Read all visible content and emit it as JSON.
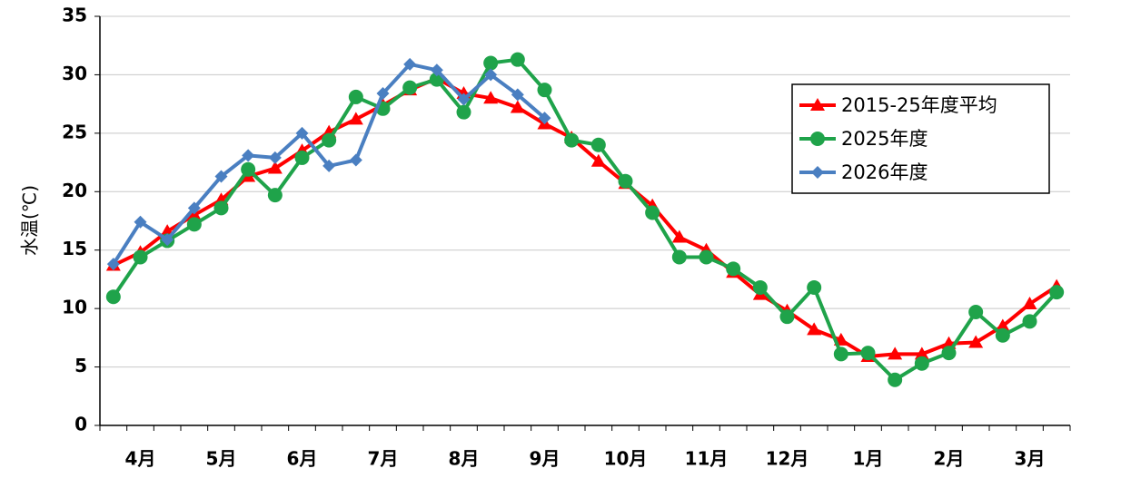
{
  "chart_data": {
    "type": "line",
    "ylabel": "水温(℃)",
    "categories": [
      null,
      "4月",
      null,
      null,
      "5月",
      null,
      null,
      "6月",
      null,
      null,
      "7月",
      null,
      null,
      "8月",
      null,
      null,
      "9月",
      null,
      null,
      "10月",
      null,
      null,
      "11月",
      null,
      null,
      "12月",
      null,
      null,
      "1月",
      null,
      null,
      "2月",
      null,
      null,
      "3月",
      null
    ],
    "series": [
      {
        "name": "2015-25年度平均",
        "color": "#ff0000",
        "marker": "triangle",
        "values": [
          13.7,
          14.8,
          16.6,
          18.0,
          19.3,
          21.3,
          22.0,
          23.5,
          25.1,
          26.2,
          27.4,
          28.7,
          29.7,
          28.4,
          28.0,
          27.2,
          25.8,
          24.6,
          22.6,
          20.7,
          18.8,
          16.1,
          15.0,
          13.1,
          11.2,
          9.8,
          8.2,
          7.3,
          5.9,
          6.1,
          6.1,
          7.0,
          7.1,
          8.5,
          10.4,
          11.9
        ]
      },
      {
        "name": "2025年度",
        "color": "#1fa34a",
        "marker": "circle",
        "values": [
          11.0,
          14.4,
          15.8,
          17.2,
          18.6,
          21.9,
          19.7,
          22.9,
          24.4,
          28.1,
          27.1,
          28.9,
          29.6,
          26.8,
          31.0,
          31.3,
          28.7,
          24.4,
          24.0,
          20.9,
          18.2,
          14.4,
          14.4,
          13.4,
          11.8,
          9.3,
          11.8,
          6.1,
          6.2,
          3.9,
          5.3,
          6.2,
          9.7,
          7.7,
          8.9,
          11.4
        ]
      },
      {
        "name": "2026年度",
        "color": "#4a7fc1",
        "marker": "diamond",
        "values": [
          13.8,
          17.4,
          15.9,
          18.6,
          21.3,
          23.1,
          22.9,
          25.0,
          22.2,
          22.7,
          28.4,
          30.9,
          30.4,
          27.9,
          30.0,
          28.3,
          26.3,
          null,
          null,
          null,
          null,
          null,
          null,
          null,
          null,
          null,
          null,
          null,
          null,
          null,
          null,
          null,
          null,
          null,
          null,
          null
        ]
      }
    ],
    "ylim": [
      0,
      35
    ],
    "yticks": [
      0,
      5,
      10,
      15,
      20,
      25,
      30,
      35
    ],
    "grid": true,
    "legend": "upper right"
  }
}
